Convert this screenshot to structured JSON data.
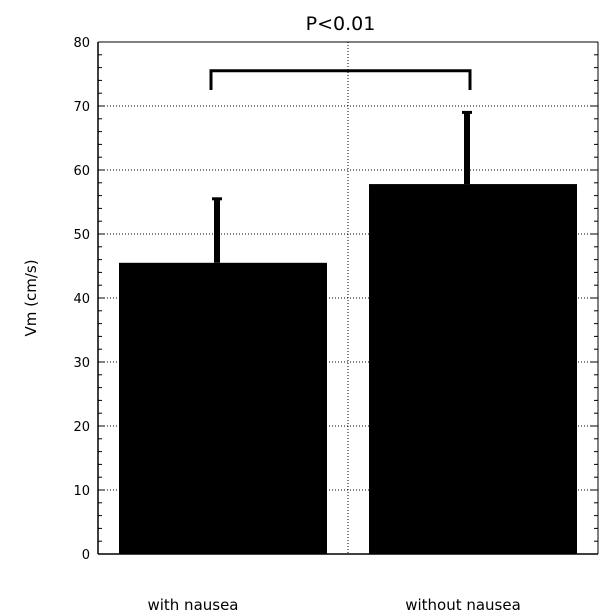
{
  "chart_data": {
    "type": "bar",
    "categories": [
      "with nausea",
      "without nausea"
    ],
    "values": [
      45.5,
      57.8
    ],
    "error_upper": [
      55.5,
      69
    ],
    "ylabel": "Vm (cm/s)",
    "xlabel": "",
    "ylim": [
      0,
      80
    ],
    "yticks": [
      0,
      10,
      20,
      30,
      40,
      50,
      60,
      70,
      80
    ],
    "grid": true,
    "bar_color": "#000000",
    "annotation": {
      "text": "P<0.01",
      "bracket_y": 75.5,
      "bracket_drop_to": 72.5
    }
  }
}
